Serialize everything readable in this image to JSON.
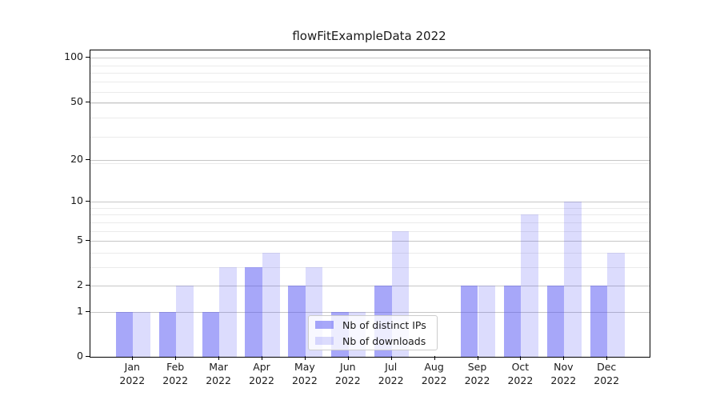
{
  "figure": {
    "background": "#ffffff"
  },
  "chart_data": {
    "type": "bar",
    "title": "flowFitExampleData 2022",
    "categories": [
      "Jan 2022",
      "Feb 2022",
      "Mar 2022",
      "Apr 2022",
      "May 2022",
      "Jun 2022",
      "Jul 2022",
      "Aug 2022",
      "Sep 2022",
      "Oct 2022",
      "Nov 2022",
      "Dec 2022"
    ],
    "x_tick_months": [
      "Jan",
      "Feb",
      "Mar",
      "Apr",
      "May",
      "Jun",
      "Jul",
      "Aug",
      "Sep",
      "Oct",
      "Nov",
      "Dec"
    ],
    "x_tick_year": "2022",
    "series": [
      {
        "name": "Nb of distinct IPs",
        "values": [
          1,
          1,
          1,
          3,
          2,
          1,
          2,
          0,
          2,
          2,
          2,
          2
        ],
        "fill_on_white": "#a9a9f7",
        "alpha": 0.51
      },
      {
        "name": "Nb of downloads",
        "values": [
          1,
          2,
          3,
          4,
          3,
          1,
          6,
          0,
          2,
          8,
          10,
          4
        ],
        "fill_on_white": "#dcdcfb",
        "alpha": 0.2
      }
    ],
    "xlabel": "",
    "ylabel": "",
    "y_axis": {
      "scale": "log1p",
      "tick_values": [
        0,
        1,
        2,
        5,
        10,
        20,
        50,
        100
      ],
      "tick_labels": [
        "0",
        "1",
        "2",
        "5",
        "10",
        "20",
        "50",
        "100"
      ],
      "minor_grid_values": [
        3,
        4,
        6,
        7,
        8,
        9,
        19,
        29,
        39,
        49,
        59,
        69,
        79,
        89
      ],
      "range_top_value": 103
    },
    "grid": {
      "enabled": true,
      "major_color": "#c6c6c6",
      "minor_color": "#ebebeb"
    },
    "legend": {
      "location": "lower center",
      "entries": [
        "Nb of distinct IPs",
        "Nb of downloads"
      ],
      "border_color": "#cccccc",
      "background": "#ffffff"
    }
  },
  "colors": {
    "bar_base": "#5252f3",
    "spine": "#000000",
    "text": "#1a1a1a"
  }
}
